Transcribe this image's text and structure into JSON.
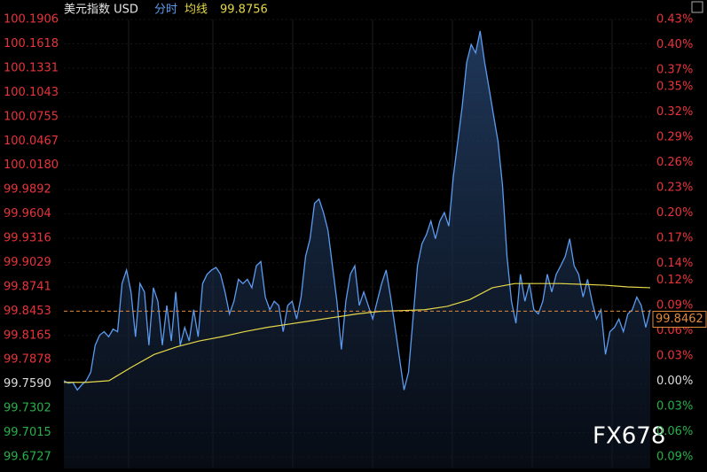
{
  "chart_data": {
    "type": "line",
    "title": "美元指数 USD",
    "average_value": 99.8756,
    "last_price": 99.8462,
    "reference_line": 99.8453,
    "base": 99.759,
    "watermark": "FX678",
    "up_color": "#e8343a",
    "down_color": "#27b04a",
    "flat_color": "#dddddd",
    "ylim": [
      99.6727,
      100.1906
    ],
    "yticks": [
      100.1906,
      100.1618,
      100.1331,
      100.1043,
      100.0755,
      100.0467,
      {
        "value": 100.018,
        "label": "100.0180"
      },
      99.9892,
      99.9604,
      99.9316,
      99.9029,
      99.8741,
      99.8453,
      99.8165,
      99.7878,
      {
        "value": 99.759,
        "label": "99.7590"
      },
      99.7302,
      99.7015,
      99.6727
    ],
    "y2lim": [
      -0.09,
      0.43
    ],
    "y2ticks": [
      {
        "value": 0.43,
        "label": "0.43%"
      },
      {
        "value": 0.4,
        "label": "0.40%"
      },
      {
        "value": 0.37,
        "label": "0.37%"
      },
      {
        "value": 0.35,
        "label": "0.35%"
      },
      {
        "value": 0.32,
        "label": "0.32%"
      },
      {
        "value": 0.29,
        "label": "0.29%"
      },
      {
        "value": 0.26,
        "label": "0.26%"
      },
      {
        "value": 0.23,
        "label": "0.23%"
      },
      {
        "value": 0.2,
        "label": "0.20%"
      },
      {
        "value": 0.17,
        "label": "0.17%"
      },
      {
        "value": 0.14,
        "label": "0.14%"
      },
      {
        "value": 0.12,
        "label": "0.12%"
      },
      {
        "value": 0.09,
        "label": "0.09%"
      },
      {
        "value": 0.06,
        "label": "0.06%"
      },
      {
        "value": 0.03,
        "label": "0.03%"
      },
      {
        "value": 0,
        "label": "0.00%"
      },
      {
        "value": -0.03,
        "label": "0.03%"
      },
      {
        "value": -0.06,
        "label": "0.06%"
      },
      {
        "value": -0.09,
        "label": "0.09%"
      }
    ],
    "series": [
      {
        "name": "分时",
        "color": "#5b9bef",
        "values": [
          99.763,
          99.76,
          99.761,
          99.752,
          99.758,
          99.763,
          99.773,
          99.805,
          99.817,
          99.821,
          99.815,
          99.824,
          99.821,
          99.878,
          99.894,
          99.868,
          99.815,
          99.878,
          99.868,
          99.805,
          99.873,
          99.857,
          99.805,
          99.852,
          99.81,
          99.868,
          99.805,
          99.826,
          99.81,
          99.847,
          99.815,
          99.878,
          99.889,
          99.894,
          99.897,
          99.889,
          99.868,
          99.842,
          99.857,
          99.883,
          99.878,
          99.883,
          99.873,
          99.899,
          99.904,
          99.862,
          99.847,
          99.857,
          99.852,
          99.821,
          99.852,
          99.857,
          99.836,
          99.862,
          99.91,
          99.931,
          99.973,
          99.978,
          99.962,
          99.941,
          99.899,
          99.857,
          99.8,
          99.857,
          99.889,
          99.899,
          99.852,
          99.868,
          99.852,
          99.836,
          99.857,
          99.878,
          99.894,
          99.862,
          99.826,
          99.789,
          99.752,
          99.773,
          99.836,
          99.899,
          99.925,
          99.936,
          99.952,
          99.931,
          99.952,
          99.962,
          99.946,
          100.004,
          100.046,
          100.088,
          100.14,
          100.161,
          100.151,
          100.177,
          100.14,
          100.109,
          100.077,
          100.046,
          99.994,
          99.91,
          99.857,
          99.831,
          99.889,
          99.857,
          99.878,
          99.847,
          99.842,
          99.857,
          99.889,
          99.868,
          99.889,
          99.899,
          99.91,
          99.931,
          99.899,
          99.889,
          99.862,
          99.883,
          99.857,
          99.836,
          99.847,
          99.794,
          99.821,
          99.826,
          99.836,
          99.821,
          99.842,
          99.847,
          99.862,
          99.852,
          99.826,
          99.847
        ]
      },
      {
        "name": "均线",
        "color": "#e6d84a",
        "values": [
          99.761,
          99.761,
          99.763,
          99.779,
          99.794,
          99.803,
          99.81,
          99.815,
          99.821,
          99.826,
          99.83,
          99.834,
          99.838,
          99.842,
          99.845,
          99.846,
          99.847,
          99.851,
          99.859,
          99.873,
          99.878,
          99.878,
          99.878,
          99.877,
          99.876,
          99.874,
          99.873
        ]
      }
    ]
  }
}
